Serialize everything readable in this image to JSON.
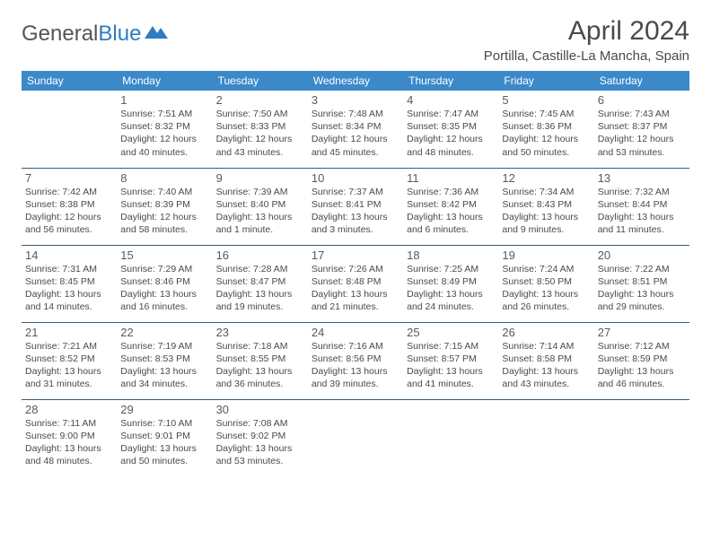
{
  "logo": {
    "text1": "General",
    "text2": "Blue"
  },
  "title": "April 2024",
  "location": "Portilla, Castille-La Mancha, Spain",
  "colors": {
    "header_bg": "#3b89c9",
    "header_text": "#ffffff",
    "border": "#3b5a78",
    "text": "#4a4a4a",
    "logo_blue": "#2e7cc0"
  },
  "dayNames": [
    "Sunday",
    "Monday",
    "Tuesday",
    "Wednesday",
    "Thursday",
    "Friday",
    "Saturday"
  ],
  "weeks": [
    [
      null,
      {
        "n": "1",
        "sr": "7:51 AM",
        "ss": "8:32 PM",
        "dl": "12 hours and 40 minutes."
      },
      {
        "n": "2",
        "sr": "7:50 AM",
        "ss": "8:33 PM",
        "dl": "12 hours and 43 minutes."
      },
      {
        "n": "3",
        "sr": "7:48 AM",
        "ss": "8:34 PM",
        "dl": "12 hours and 45 minutes."
      },
      {
        "n": "4",
        "sr": "7:47 AM",
        "ss": "8:35 PM",
        "dl": "12 hours and 48 minutes."
      },
      {
        "n": "5",
        "sr": "7:45 AM",
        "ss": "8:36 PM",
        "dl": "12 hours and 50 minutes."
      },
      {
        "n": "6",
        "sr": "7:43 AM",
        "ss": "8:37 PM",
        "dl": "12 hours and 53 minutes."
      }
    ],
    [
      {
        "n": "7",
        "sr": "7:42 AM",
        "ss": "8:38 PM",
        "dl": "12 hours and 56 minutes."
      },
      {
        "n": "8",
        "sr": "7:40 AM",
        "ss": "8:39 PM",
        "dl": "12 hours and 58 minutes."
      },
      {
        "n": "9",
        "sr": "7:39 AM",
        "ss": "8:40 PM",
        "dl": "13 hours and 1 minute."
      },
      {
        "n": "10",
        "sr": "7:37 AM",
        "ss": "8:41 PM",
        "dl": "13 hours and 3 minutes."
      },
      {
        "n": "11",
        "sr": "7:36 AM",
        "ss": "8:42 PM",
        "dl": "13 hours and 6 minutes."
      },
      {
        "n": "12",
        "sr": "7:34 AM",
        "ss": "8:43 PM",
        "dl": "13 hours and 9 minutes."
      },
      {
        "n": "13",
        "sr": "7:32 AM",
        "ss": "8:44 PM",
        "dl": "13 hours and 11 minutes."
      }
    ],
    [
      {
        "n": "14",
        "sr": "7:31 AM",
        "ss": "8:45 PM",
        "dl": "13 hours and 14 minutes."
      },
      {
        "n": "15",
        "sr": "7:29 AM",
        "ss": "8:46 PM",
        "dl": "13 hours and 16 minutes."
      },
      {
        "n": "16",
        "sr": "7:28 AM",
        "ss": "8:47 PM",
        "dl": "13 hours and 19 minutes."
      },
      {
        "n": "17",
        "sr": "7:26 AM",
        "ss": "8:48 PM",
        "dl": "13 hours and 21 minutes."
      },
      {
        "n": "18",
        "sr": "7:25 AM",
        "ss": "8:49 PM",
        "dl": "13 hours and 24 minutes."
      },
      {
        "n": "19",
        "sr": "7:24 AM",
        "ss": "8:50 PM",
        "dl": "13 hours and 26 minutes."
      },
      {
        "n": "20",
        "sr": "7:22 AM",
        "ss": "8:51 PM",
        "dl": "13 hours and 29 minutes."
      }
    ],
    [
      {
        "n": "21",
        "sr": "7:21 AM",
        "ss": "8:52 PM",
        "dl": "13 hours and 31 minutes."
      },
      {
        "n": "22",
        "sr": "7:19 AM",
        "ss": "8:53 PM",
        "dl": "13 hours and 34 minutes."
      },
      {
        "n": "23",
        "sr": "7:18 AM",
        "ss": "8:55 PM",
        "dl": "13 hours and 36 minutes."
      },
      {
        "n": "24",
        "sr": "7:16 AM",
        "ss": "8:56 PM",
        "dl": "13 hours and 39 minutes."
      },
      {
        "n": "25",
        "sr": "7:15 AM",
        "ss": "8:57 PM",
        "dl": "13 hours and 41 minutes."
      },
      {
        "n": "26",
        "sr": "7:14 AM",
        "ss": "8:58 PM",
        "dl": "13 hours and 43 minutes."
      },
      {
        "n": "27",
        "sr": "7:12 AM",
        "ss": "8:59 PM",
        "dl": "13 hours and 46 minutes."
      }
    ],
    [
      {
        "n": "28",
        "sr": "7:11 AM",
        "ss": "9:00 PM",
        "dl": "13 hours and 48 minutes."
      },
      {
        "n": "29",
        "sr": "7:10 AM",
        "ss": "9:01 PM",
        "dl": "13 hours and 50 minutes."
      },
      {
        "n": "30",
        "sr": "7:08 AM",
        "ss": "9:02 PM",
        "dl": "13 hours and 53 minutes."
      },
      null,
      null,
      null,
      null
    ]
  ],
  "labels": {
    "sunrise": "Sunrise:",
    "sunset": "Sunset:",
    "daylight": "Daylight:"
  }
}
